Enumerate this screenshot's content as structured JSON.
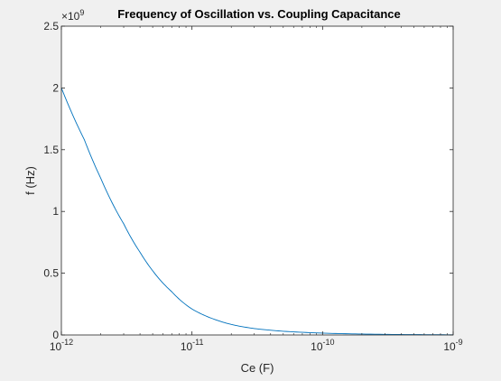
{
  "chart_data": {
    "type": "line",
    "title": "Frequency of Oscillation vs. Coupling Capacitance",
    "xlabel": "Ce (F)",
    "ylabel": "f (Hz)",
    "x_scale": "log",
    "xlim": [
      1e-12,
      1e-09
    ],
    "ylim": [
      0,
      2.5
    ],
    "y_exponent_label": "×10",
    "y_exponent_power": "9",
    "x_ticks": [
      {
        "value": 1e-12,
        "base": "10",
        "exp": "-12"
      },
      {
        "value": 1e-11,
        "base": "10",
        "exp": "-11"
      },
      {
        "value": 1e-10,
        "base": "10",
        "exp": "-10"
      },
      {
        "value": 1e-09,
        "base": "10",
        "exp": "-9"
      }
    ],
    "y_ticks": [
      {
        "value": 0,
        "label": "0"
      },
      {
        "value": 0.5,
        "label": "0.5"
      },
      {
        "value": 1,
        "label": "1"
      },
      {
        "value": 1.5,
        "label": "1.5"
      },
      {
        "value": 2,
        "label": "2"
      },
      {
        "value": 2.5,
        "label": "2.5"
      }
    ],
    "grid": false,
    "series": [
      {
        "color": "#0072bd",
        "x": [
          1e-12,
          1.5e-12,
          2e-12,
          3e-12,
          4e-12,
          5e-12,
          7e-12,
          1e-11,
          1.5e-11,
          2e-11,
          3e-11,
          5e-11,
          1e-10,
          2e-10,
          5e-10,
          1e-09
        ],
        "y": [
          2.0,
          1.58,
          1.27,
          0.9,
          0.67,
          0.52,
          0.35,
          0.21,
          0.125,
          0.085,
          0.052,
          0.03,
          0.015,
          0.0075,
          0.003,
          0.0015
        ]
      }
    ]
  }
}
